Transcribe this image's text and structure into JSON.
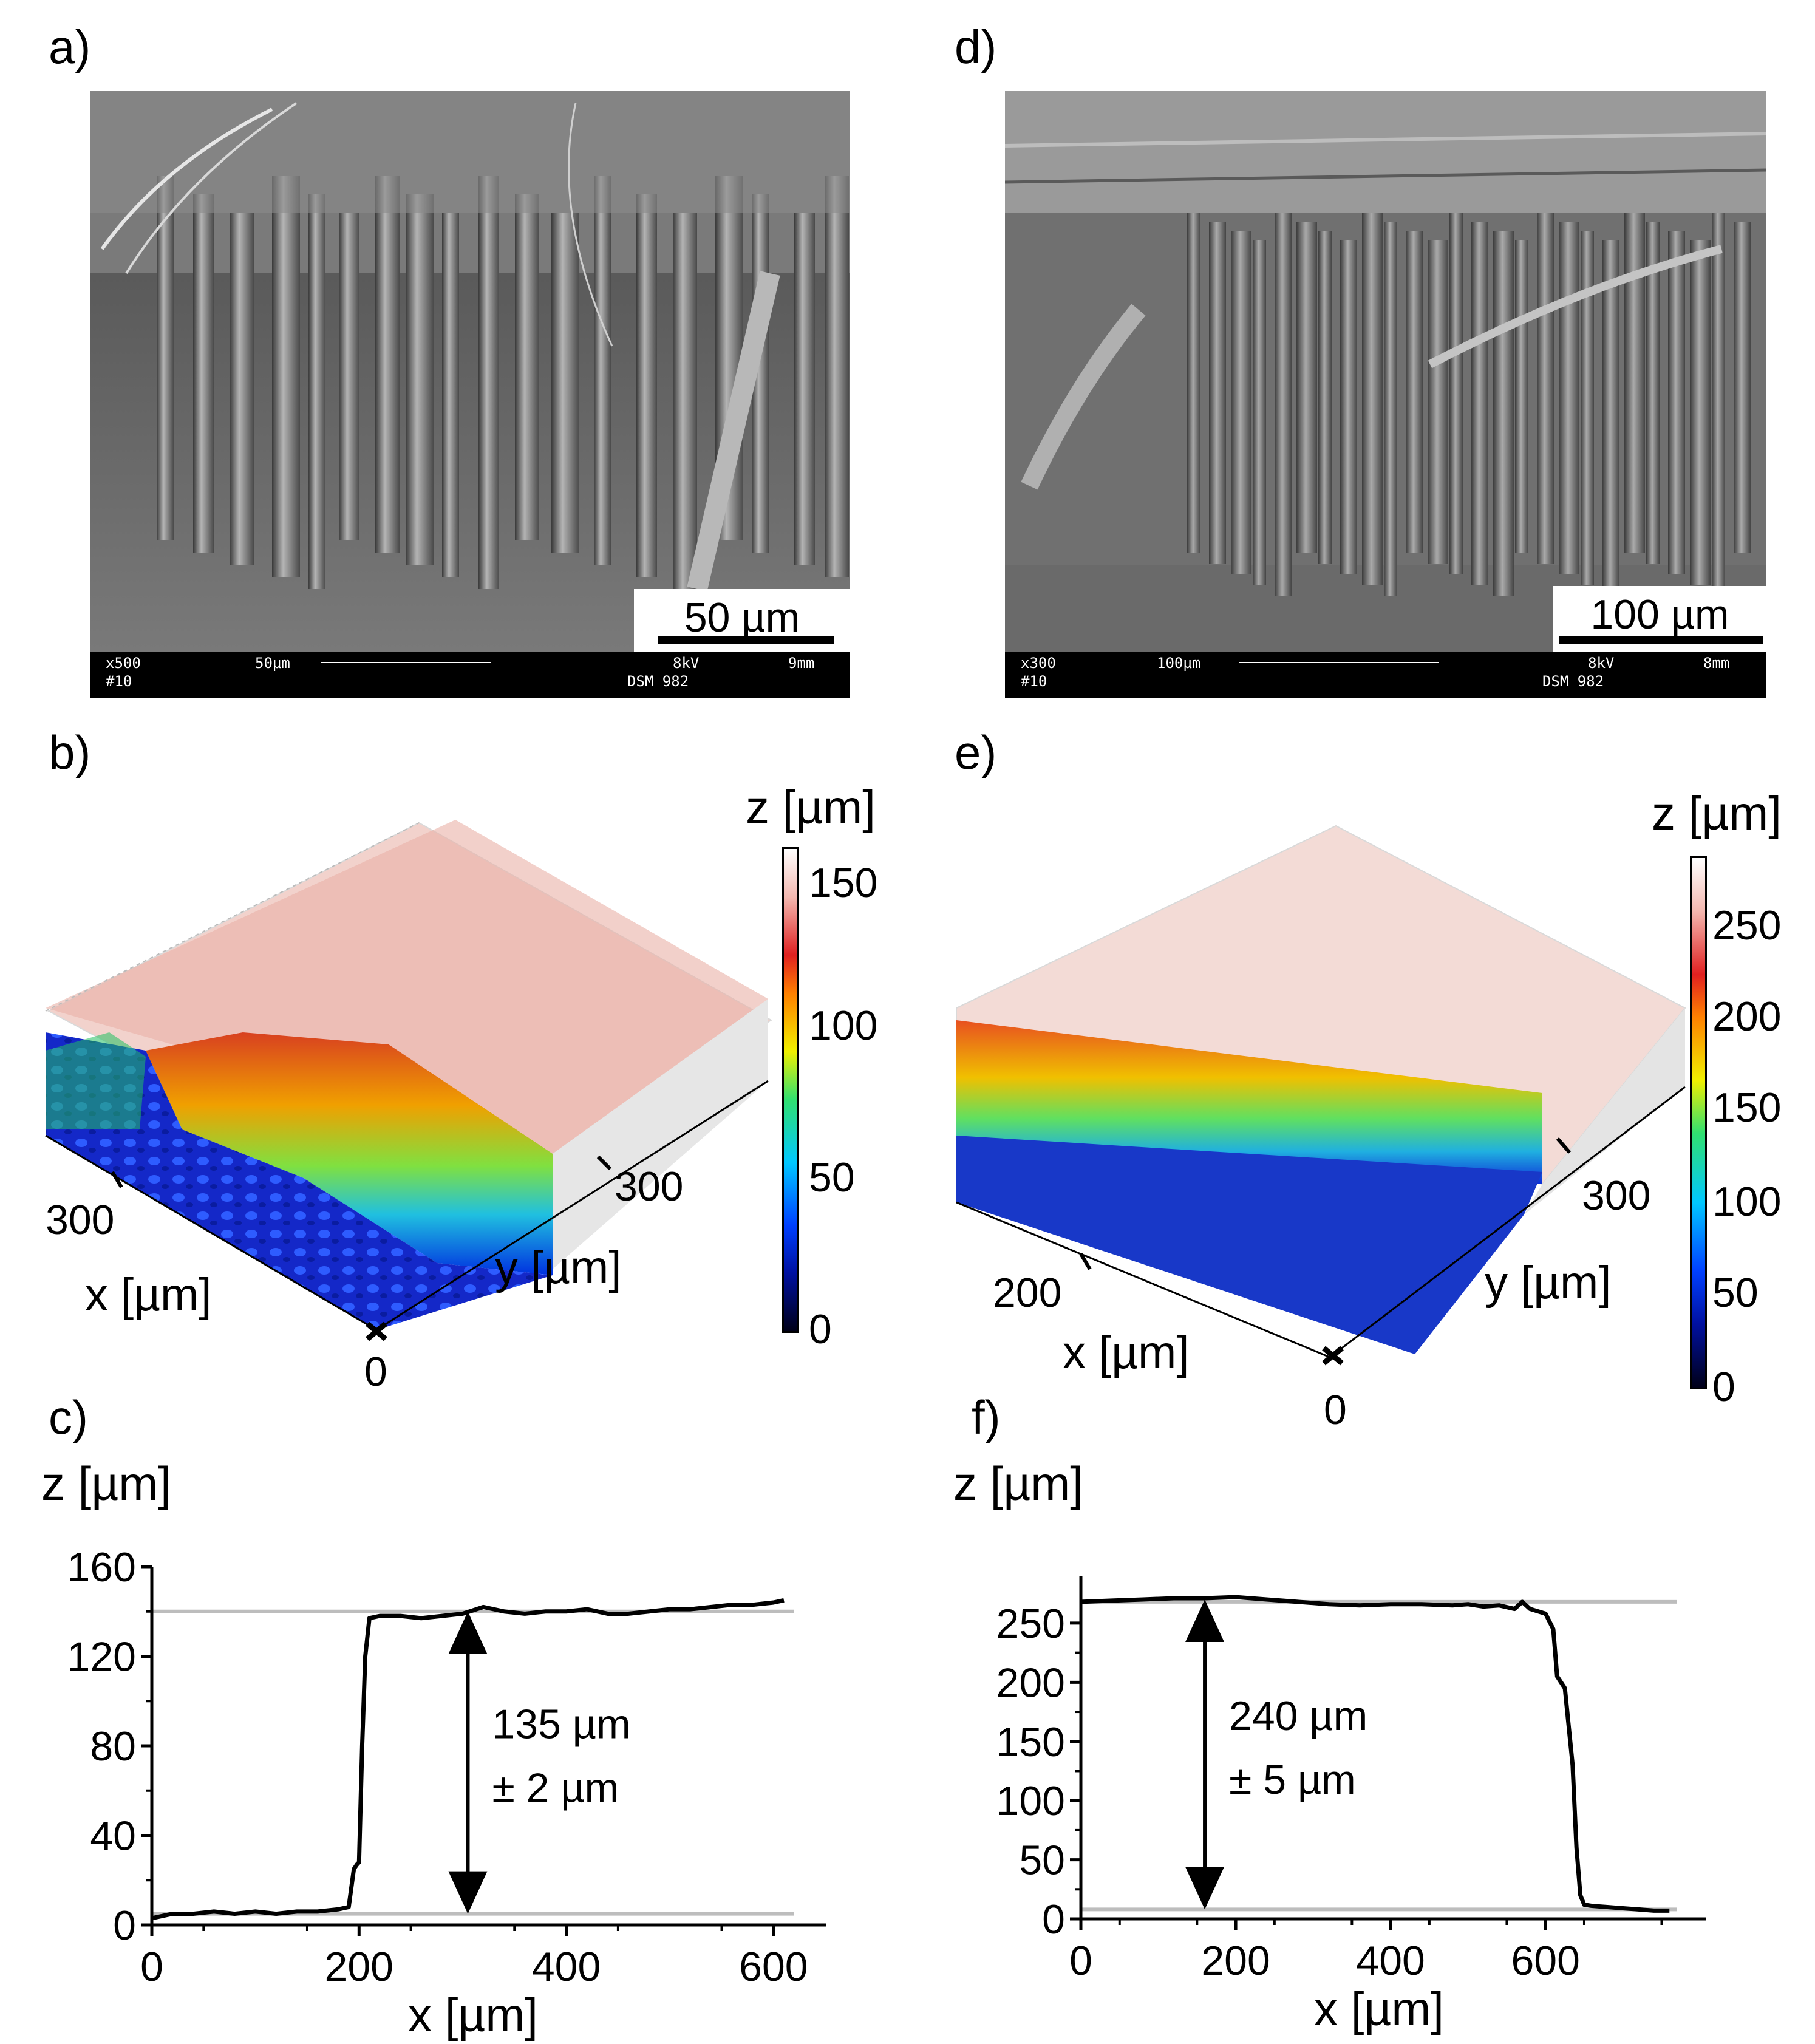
{
  "panels": {
    "a": {
      "label": "a)",
      "scale_text": "50 µm",
      "bar": {
        "left": "x500",
        "left2": "#10",
        "mid": "50µm",
        "right1": "8kV",
        "right2": "DSM 982",
        "right3": "9mm"
      }
    },
    "d": {
      "label": "d)",
      "scale_text": "100 µm",
      "bar": {
        "left": "x300",
        "left2": "#10",
        "mid": "100µm",
        "right1": "8kV",
        "right2": "DSM 982",
        "right3": "8mm"
      }
    },
    "b": {
      "label": "b)",
      "x_axis": "x [µm]",
      "y_axis": "y [µm]",
      "x_tick": "300",
      "y_tick": "300",
      "origin": "0",
      "colorbar": {
        "title": "z [µm]",
        "ticks": [
          "150",
          "100",
          "50",
          "0"
        ]
      }
    },
    "e": {
      "label": "e)",
      "x_axis": "x [µm]",
      "y_axis": "y [µm]",
      "x_tick": "200",
      "y_tick": "300",
      "origin": "0",
      "colorbar": {
        "title": "z [µm]",
        "ticks": [
          "250",
          "200",
          "150",
          "100",
          "50",
          "0"
        ]
      }
    },
    "c": {
      "label": "c)",
      "annotation_1": "135 µm",
      "annotation_2": "± 2 µm"
    },
    "f": {
      "label": "f)",
      "annotation_1": "240 µm",
      "annotation_2": "± 5 µm"
    }
  },
  "chart_data": [
    {
      "type": "line",
      "panel": "c",
      "xlabel": "x [µm]",
      "ylabel": "z [µm]",
      "xlim": [
        0,
        620
      ],
      "ylim": [
        0,
        160
      ],
      "xticks": [
        0,
        200,
        400,
        600
      ],
      "yticks": [
        0,
        40,
        80,
        120,
        160
      ],
      "reference_lines": [
        5,
        140
      ],
      "series": [
        {
          "x": [
            0,
            20,
            40,
            60,
            80,
            100,
            120,
            140,
            160,
            180,
            190,
            195,
            198,
            200,
            203,
            206,
            210,
            220,
            240,
            260,
            280,
            300,
            320,
            340,
            360,
            380,
            400,
            420,
            440,
            460,
            480,
            500,
            520,
            540,
            560,
            580,
            600,
            610
          ],
          "y": [
            3,
            5,
            5,
            6,
            5,
            6,
            5,
            6,
            6,
            7,
            8,
            25,
            27,
            28,
            80,
            120,
            137,
            138,
            138,
            137,
            138,
            139,
            142,
            140,
            139,
            140,
            140,
            141,
            139,
            139,
            140,
            141,
            141,
            142,
            143,
            143,
            144,
            145
          ]
        }
      ],
      "arrow": {
        "x": 305,
        "from": 5,
        "to": 140
      }
    },
    {
      "type": "line",
      "panel": "f",
      "xlabel": "x [µm]",
      "ylabel": "z [µm]",
      "xlim": [
        0,
        770
      ],
      "ylim": [
        0,
        290
      ],
      "xticks": [
        0,
        200,
        400,
        600
      ],
      "yticks": [
        0,
        50,
        100,
        150,
        200,
        250
      ],
      "reference_lines": [
        8,
        268
      ],
      "series": [
        {
          "x": [
            0,
            40,
            80,
            120,
            160,
            200,
            240,
            280,
            320,
            360,
            400,
            440,
            480,
            500,
            520,
            540,
            560,
            570,
            580,
            600,
            610,
            615,
            625,
            635,
            640,
            645,
            650,
            660,
            680,
            700,
            720,
            740,
            760
          ],
          "y": [
            268,
            269,
            270,
            271,
            271,
            272,
            270,
            268,
            266,
            265,
            266,
            266,
            265,
            266,
            264,
            265,
            262,
            268,
            262,
            258,
            245,
            205,
            195,
            130,
            60,
            20,
            12,
            11,
            10,
            9,
            8,
            7,
            7
          ]
        }
      ],
      "arrow": {
        "x": 160,
        "from": 8,
        "to": 270
      }
    }
  ]
}
